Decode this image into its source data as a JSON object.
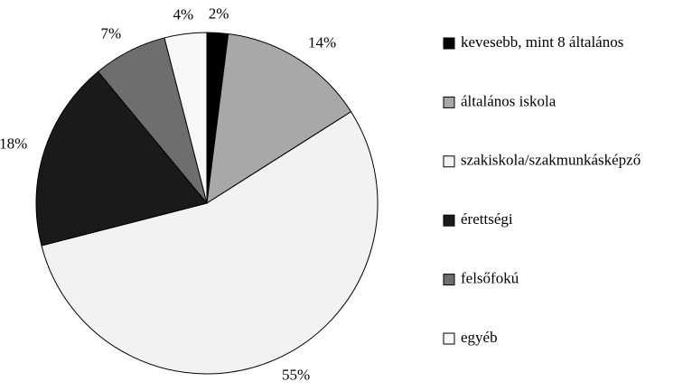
{
  "chart_data": {
    "type": "pie",
    "categories": [
      "kevesebb, mint 8 általános",
      "általános iskola",
      "szakiskola/szakmunkásképző",
      "érettségi",
      "felsőfokú",
      "egyéb"
    ],
    "values": [
      2,
      14,
      55,
      18,
      7,
      4
    ],
    "value_labels": [
      "2%",
      "14%",
      "55%",
      "18%",
      "7%",
      "4%"
    ],
    "colors": [
      "#000000",
      "#a8a8a8",
      "#f2f2f2",
      "#1a1a1a",
      "#6e6e6e",
      "#f7f7f7"
    ],
    "legend": "right"
  }
}
